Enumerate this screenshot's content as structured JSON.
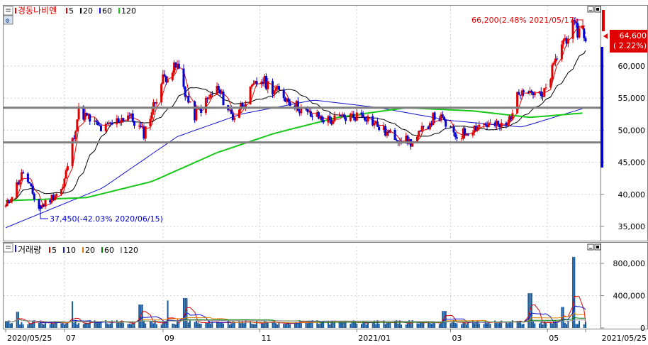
{
  "price_panel": {
    "legend": {
      "name": "경동나비엔",
      "items": [
        {
          "label": "5",
          "color": "#e00000"
        },
        {
          "label": "20",
          "color": "#000000"
        },
        {
          "label": "60",
          "color": "#1010d0"
        },
        {
          "label": "120",
          "color": "#18c818"
        }
      ]
    },
    "y_ticks": [
      "60,000",
      "55,000",
      "50,000",
      "45,000",
      "40,000",
      "35,000"
    ],
    "current_price": "64,600",
    "current_change": "( 2.22%)",
    "high_annotation": "66,200(2.48% 2021/05/17)",
    "low_annotation": "37,450(-42.03% 2020/06/15)"
  },
  "volume_panel": {
    "legend": {
      "name": "거래량",
      "items": [
        {
          "label": "5",
          "color": "#e00000"
        },
        {
          "label": "10",
          "color": "#1010d0"
        },
        {
          "label": "20",
          "color": "#e08000"
        },
        {
          "label": "60",
          "color": "#008000"
        },
        {
          "label": "120",
          "color": "#909090"
        }
      ]
    },
    "y_ticks": [
      "800,000",
      "400,000",
      "0"
    ]
  },
  "x_axis": {
    "labels": [
      "2020/05/25",
      "07",
      "09",
      "11",
      "2021/01",
      "03",
      "05",
      "2021/05/25"
    ]
  },
  "chart_data": {
    "type": "candlestick",
    "title": "경동나비엔",
    "period": {
      "start": "2020/05/25",
      "end": "2021/05/25"
    },
    "y_range": [
      33000,
      68000
    ],
    "key_prices": {
      "current": 64600,
      "change_percent": 2.22,
      "period_high": {
        "value": 66200,
        "date": "2021/05/17",
        "change_percent": 2.48
      },
      "period_low": {
        "value": 37450,
        "date": "2020/06/15",
        "change_percent": -42.03
      }
    },
    "horizontal_lines": [
      53500,
      48100
    ],
    "close_series": [
      {
        "date": "2020/05/25",
        "close": 38000
      },
      {
        "date": "2020/06/05",
        "close": 43500
      },
      {
        "date": "2020/06/15",
        "close": 37800
      },
      {
        "date": "2020/06/30",
        "close": 41000
      },
      {
        "date": "2020/07/10",
        "close": 53000
      },
      {
        "date": "2020/07/25",
        "close": 50000
      },
      {
        "date": "2020/08/10",
        "close": 52500
      },
      {
        "date": "2020/08/20",
        "close": 49500
      },
      {
        "date": "2020/09/01",
        "close": 58000
      },
      {
        "date": "2020/09/10",
        "close": 60000
      },
      {
        "date": "2020/09/20",
        "close": 52000
      },
      {
        "date": "2020/10/05",
        "close": 56500
      },
      {
        "date": "2020/10/15",
        "close": 52000
      },
      {
        "date": "2020/11/01",
        "close": 58000
      },
      {
        "date": "2020/11/15",
        "close": 55500
      },
      {
        "date": "2020/12/01",
        "close": 52500
      },
      {
        "date": "2020/12/15",
        "close": 51500
      },
      {
        "date": "2021/01/05",
        "close": 52500
      },
      {
        "date": "2021/01/20",
        "close": 49500
      },
      {
        "date": "2021/02/05",
        "close": 48000
      },
      {
        "date": "2021/02/20",
        "close": 52500
      },
      {
        "date": "2021/03/05",
        "close": 49000
      },
      {
        "date": "2021/03/20",
        "close": 51000
      },
      {
        "date": "2021/04/05",
        "close": 50500
      },
      {
        "date": "2021/04/15",
        "close": 57000
      },
      {
        "date": "2021/04/28",
        "close": 55000
      },
      {
        "date": "2021/05/10",
        "close": 63500
      },
      {
        "date": "2021/05/17",
        "close": 66000
      },
      {
        "date": "2021/05/25",
        "close": 64600
      }
    ],
    "moving_averages": [
      {
        "name": "5",
        "color": "#e00000"
      },
      {
        "name": "20",
        "color": "#000000"
      },
      {
        "name": "60",
        "color": "#1010d0",
        "values": [
          {
            "date": "2020/05/25",
            "value": 34800
          },
          {
            "date": "2020/07/25",
            "value": 41000
          },
          {
            "date": "2020/09/10",
            "value": 49000
          },
          {
            "date": "2020/10/20",
            "value": 52500
          },
          {
            "date": "2020/12/05",
            "value": 54700
          },
          {
            "date": "2021/01/15",
            "value": 53500
          },
          {
            "date": "2021/03/01",
            "value": 51500
          },
          {
            "date": "2021/04/15",
            "value": 50500
          },
          {
            "date": "2021/05/25",
            "value": 53500
          }
        ]
      },
      {
        "name": "120",
        "color": "#18c818",
        "values": [
          {
            "date": "2020/05/25",
            "value": 39000
          },
          {
            "date": "2020/07/15",
            "value": 39500
          },
          {
            "date": "2020/08/25",
            "value": 42000
          },
          {
            "date": "2020/10/05",
            "value": 46500
          },
          {
            "date": "2020/11/10",
            "value": 49500
          },
          {
            "date": "2020/12/20",
            "value": 52000
          },
          {
            "date": "2021/02/01",
            "value": 53500
          },
          {
            "date": "2021/03/15",
            "value": 53000
          },
          {
            "date": "2021/04/20",
            "value": 52000
          },
          {
            "date": "2021/05/25",
            "value": 52700
          }
        ]
      }
    ],
    "volume": {
      "y_range": [
        0,
        1000000
      ],
      "notable_spikes": [
        {
          "date": "2021/05/17",
          "value": 880000
        },
        {
          "date": "2021/04/20",
          "value": 430000
        },
        {
          "date": "2020/09/15",
          "value": 370000
        },
        {
          "date": "2020/09/05",
          "value": 340000
        },
        {
          "date": "2020/07/05",
          "value": 330000
        },
        {
          "date": "2020/08/18",
          "value": 290000
        },
        {
          "date": "2021/05/10",
          "value": 260000
        },
        {
          "date": "2021/02/25",
          "value": 210000
        },
        {
          "date": "2020/06/01",
          "value": 200000
        }
      ],
      "typical": 70000
    }
  }
}
